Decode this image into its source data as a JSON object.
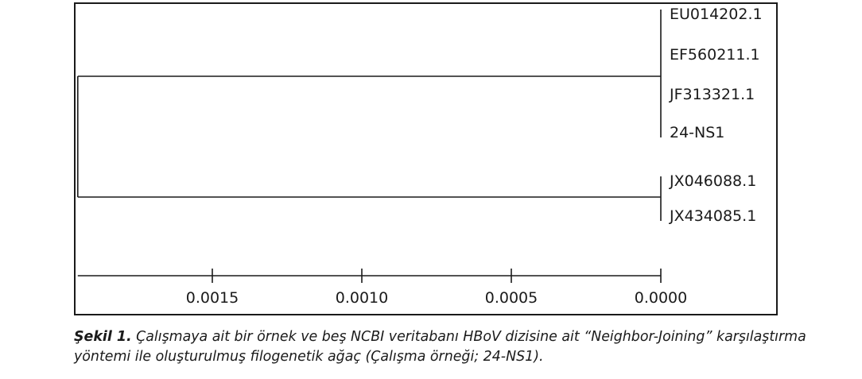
{
  "tree": {
    "leaves": [
      "EU014202.1",
      "EF560211.1",
      "JF313321.1",
      "24-NS1",
      "JX046088.1",
      "JX434085.1"
    ],
    "clades": [
      {
        "members": [
          "EU014202.1",
          "EF560211.1",
          "JF313321.1",
          "24-NS1"
        ],
        "height": 0.0
      },
      {
        "members": [
          "JX046088.1",
          "JX434085.1"
        ],
        "height": 0.0
      }
    ],
    "root_height": 0.00195
  },
  "scale_bar": {
    "ticks": [
      {
        "value": 0.0015,
        "label": "0.0015"
      },
      {
        "value": 0.001,
        "label": "0.0010"
      },
      {
        "value": 0.0005,
        "label": "0.0005"
      },
      {
        "value": 0.0,
        "label": "0.0000"
      }
    ]
  },
  "caption": {
    "label": "Şekil 1.",
    "text": "Çalışmaya ait bir örnek ve beş NCBI veritabanı HBoV dizisine ait “Neighbor-Joining” karşılaştırma yöntemi ile oluşturulmuş filogenetik ağaç (Çalışma örneği; 24-NS1)."
  }
}
